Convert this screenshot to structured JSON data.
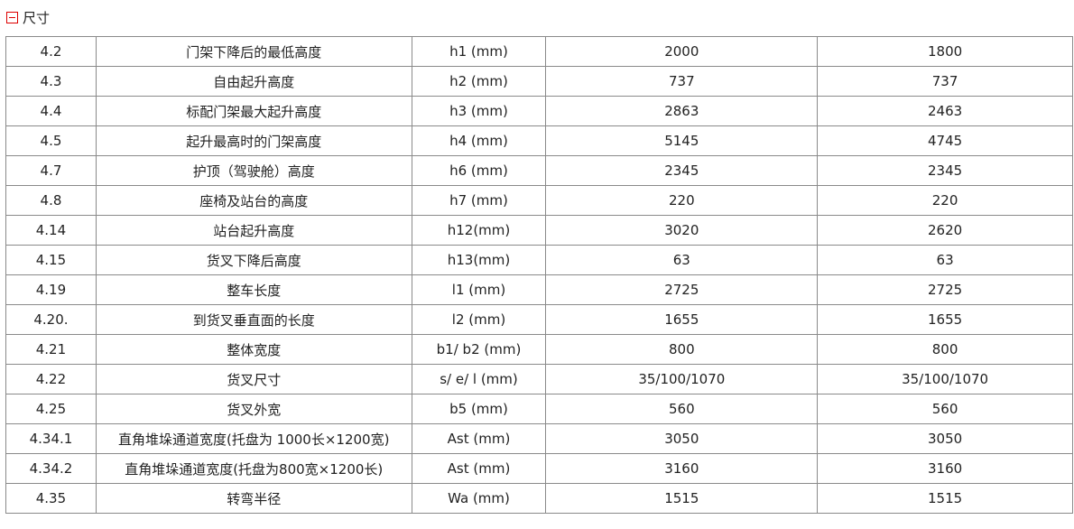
{
  "section": {
    "title": "尺寸",
    "toggle_icon": "collapse-minus-icon",
    "toggle_color": "#dd0000"
  },
  "rows": [
    [
      "4.2",
      "门架下降后的最低高度",
      "h1 (mm)",
      "2000",
      "1800"
    ],
    [
      "4.3",
      "自由起升高度",
      "h2 (mm)",
      "737",
      "737"
    ],
    [
      "4.4",
      "标配门架最大起升高度",
      "h3 (mm)",
      "2863",
      "2463"
    ],
    [
      "4.5",
      "起升最高时的门架高度",
      "h4 (mm)",
      "5145",
      "4745"
    ],
    [
      "4.7",
      "护顶（驾驶舱）高度",
      "h6 (mm)",
      "2345",
      "2345"
    ],
    [
      "4.8",
      "座椅及站台的高度",
      "h7 (mm)",
      "220",
      "220"
    ],
    [
      "4.14",
      "站台起升高度",
      "h12(mm)",
      "3020",
      "2620"
    ],
    [
      "4.15",
      "货叉下降后高度",
      "h13(mm)",
      "63",
      "63"
    ],
    [
      "4.19",
      "整车长度",
      "l1 (mm)",
      "2725",
      "2725"
    ],
    [
      "4.20.",
      "到货叉垂直面的长度",
      "l2 (mm)",
      "1655",
      "1655"
    ],
    [
      "4.21",
      "整体宽度",
      "b1/ b2 (mm)",
      "800",
      "800"
    ],
    [
      "4.22",
      "货叉尺寸",
      "s/ e/ l (mm)",
      "35/100/1070",
      "35/100/1070"
    ],
    [
      "4.25",
      "货叉外宽",
      "b5 (mm)",
      "560",
      "560"
    ],
    [
      "4.34.1",
      "直角堆垛通道宽度(托盘为 1000长×1200宽)",
      "Ast (mm)",
      "3050",
      "3050"
    ],
    [
      "4.34.2",
      "直角堆垛通道宽度(托盘为800宽×1200长)",
      "Ast (mm)",
      "3160",
      "3160"
    ],
    [
      "4.35",
      "转弯半径",
      "Wa (mm)",
      "1515",
      "1515"
    ]
  ]
}
